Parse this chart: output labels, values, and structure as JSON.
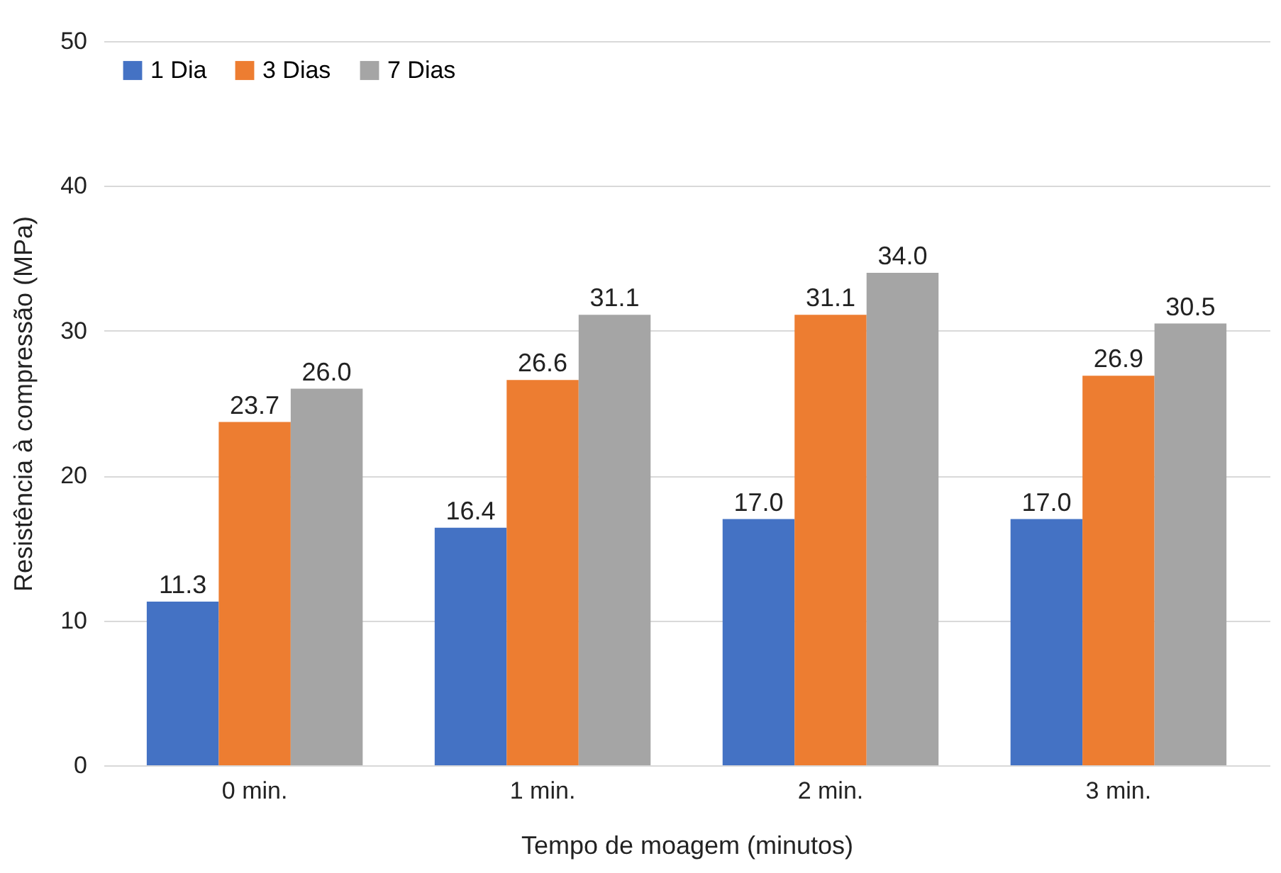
{
  "chart_data": {
    "type": "bar",
    "xlabel": "Tempo de moagem (minutos)",
    "ylabel": "Resistência à compressão (MPa)",
    "categories": [
      "0 min.",
      "1 min.",
      "2 min.",
      "3 min."
    ],
    "series": [
      {
        "name": "1 Dia",
        "color": "#4472c4",
        "values": [
          11.3,
          16.4,
          17.0,
          17.0
        ],
        "value_labels": [
          "11.3",
          "16.4",
          "17.0",
          "17.0"
        ]
      },
      {
        "name": "3 Dias",
        "color": "#ed7d31",
        "values": [
          23.7,
          26.6,
          31.1,
          26.9
        ],
        "value_labels": [
          "23.7",
          "26.6",
          "31.1",
          "26.9"
        ]
      },
      {
        "name": "7 Dias",
        "color": "#a5a5a5",
        "values": [
          26.0,
          31.1,
          34.0,
          30.5
        ],
        "value_labels": [
          "26.0",
          "31.1",
          "34.0",
          "30.5"
        ]
      }
    ],
    "ylim": [
      0,
      50
    ],
    "yticks": [
      0,
      10,
      20,
      30,
      40,
      50
    ],
    "grid": "y",
    "legend": "top left"
  }
}
